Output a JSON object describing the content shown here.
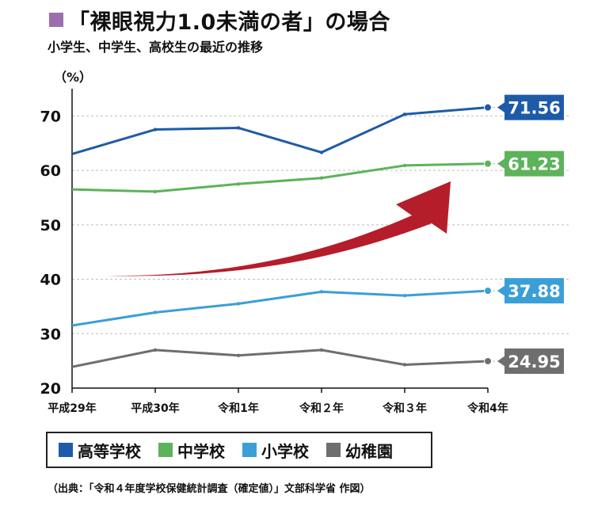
{
  "header": {
    "title": "「裸眼視力1.0未満の者」の場合",
    "subtitle": "小学生、中学生、高校生の最近の推移",
    "unit": "（%）"
  },
  "source": "（出典：「令和４年度学校保健統計調査（確定値）」文部科学省 作図）",
  "colors": {
    "title_square": "#9b6fae",
    "high_school": "#1d5ba8",
    "middle_school": "#5cb35a",
    "elementary": "#3a9fd6",
    "kindergarten": "#6e6e6e",
    "arrow": "#b51d2a"
  },
  "chart_data": {
    "type": "line",
    "categories": [
      "平成29年",
      "平成30年",
      "令和1年",
      "令和２年",
      "令和３年",
      "令和4年"
    ],
    "ylim": [
      20,
      75
    ],
    "yticks": [
      20,
      30,
      40,
      50,
      60,
      70
    ],
    "grid": true,
    "legend_position": "bottom",
    "series": [
      {
        "name": "高等学校",
        "color": "#1d5ba8",
        "values": [
          63.0,
          67.5,
          67.8,
          63.3,
          70.3,
          71.56
        ],
        "end_label": "71.56"
      },
      {
        "name": "中学校",
        "color": "#5cb35a",
        "values": [
          56.5,
          56.1,
          57.5,
          58.6,
          60.9,
          61.23
        ],
        "end_label": "61.23"
      },
      {
        "name": "小学校",
        "color": "#3a9fd6",
        "values": [
          31.5,
          33.9,
          35.5,
          37.7,
          37.0,
          37.88
        ],
        "end_label": "37.88"
      },
      {
        "name": "幼稚園",
        "color": "#6e6e6e",
        "values": [
          23.9,
          27.0,
          26.0,
          27.0,
          24.3,
          24.95
        ],
        "end_label": "24.95"
      }
    ]
  }
}
